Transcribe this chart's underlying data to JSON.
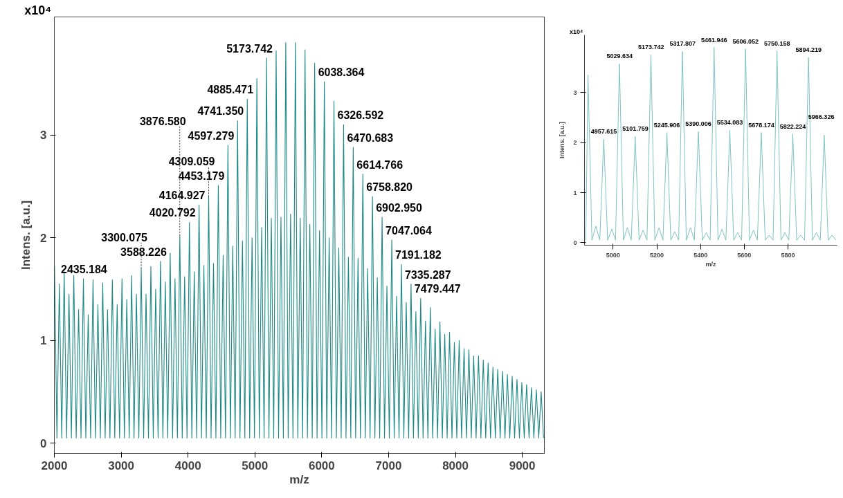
{
  "chart_data": [
    {
      "type": "line",
      "xlabel": "m/z",
      "ylabel": "Intens. [a.u.]",
      "color": "#1b8a85",
      "grid": false,
      "xlim": [
        2000,
        9330
      ],
      "ylim": [
        -0.1,
        4.15
      ],
      "xticks": [
        2000,
        3000,
        4000,
        5000,
        6000,
        7000,
        8000,
        9000
      ],
      "yticks": [
        0,
        1,
        2,
        3
      ],
      "x": [
        2003,
        2039,
        2075,
        2111,
        2147,
        2183,
        2219,
        2255,
        2291,
        2327,
        2363,
        2399,
        2435,
        2471,
        2507,
        2543,
        2579,
        2615,
        2652,
        2688,
        2724,
        2760,
        2796,
        2832,
        2868,
        2904,
        2940,
        2976,
        3012,
        3048,
        3084,
        3120,
        3156,
        3192,
        3228,
        3264,
        3300,
        3336,
        3372,
        3408,
        3444,
        3480,
        3516,
        3552,
        3588,
        3624,
        3660,
        3696,
        3733,
        3769,
        3805,
        3841,
        3877,
        3913,
        3949,
        3985,
        4021,
        4057,
        4093,
        4129,
        4165,
        4201,
        4237,
        4273,
        4309,
        4345,
        4381,
        4417,
        4453,
        4489,
        4525,
        4561,
        4597,
        4633,
        4669,
        4705,
        4741,
        4777,
        4814,
        4850,
        4886,
        4922,
        4958,
        4994,
        5030,
        5066,
        5102,
        5138,
        5174,
        5210,
        5246,
        5282,
        5318,
        5354,
        5390,
        5426,
        5462,
        5498,
        5534,
        5570,
        5606,
        5642,
        5678,
        5714,
        5750,
        5786,
        5822,
        5858,
        5894,
        5930,
        5967,
        6003,
        6039,
        6075,
        6111,
        6147,
        6183,
        6219,
        6255,
        6291,
        6327,
        6363,
        6399,
        6435,
        6471,
        6507,
        6543,
        6579,
        6615,
        6651,
        6687,
        6723,
        6759,
        6795,
        6831,
        6867,
        6903,
        6939,
        6975,
        7011,
        7048,
        7084,
        7120,
        7156,
        7192,
        7228,
        7264,
        7300,
        7336,
        7372,
        7408,
        7444,
        7480,
        7516,
        7552,
        7588,
        7624,
        7660,
        7696,
        7732,
        7768,
        7804,
        7840,
        7876,
        7912,
        7948,
        7984,
        8020,
        8056,
        8092,
        8129,
        8165,
        8201,
        8237,
        8273,
        8309,
        8345,
        8381,
        8417,
        8453,
        8489,
        8525,
        8561,
        8597,
        8633,
        8669,
        8705,
        8741,
        8777,
        8813,
        8849,
        8885,
        8921,
        8957,
        8993,
        9029,
        9065,
        9101,
        9137,
        9173,
        9210,
        9246,
        9282,
        9318
      ],
      "values": [
        1.73,
        0.05,
        1.55,
        0.05,
        1.67,
        0.05,
        1.45,
        0.05,
        1.63,
        0.05,
        1.3,
        0.05,
        1.6,
        0.05,
        1.25,
        0.05,
        1.59,
        0.05,
        1.35,
        0.05,
        1.56,
        0.05,
        1.3,
        0.05,
        1.59,
        0.05,
        1.35,
        0.05,
        1.6,
        0.05,
        1.4,
        0.05,
        1.63,
        0.05,
        1.45,
        0.05,
        1.7,
        0.05,
        1.45,
        0.05,
        1.72,
        0.05,
        1.5,
        0.05,
        1.77,
        0.05,
        1.57,
        0.05,
        1.85,
        0.05,
        1.6,
        0.05,
        2.02,
        0.05,
        1.62,
        0.05,
        2.15,
        0.05,
        1.67,
        0.05,
        2.32,
        0.05,
        1.73,
        0.05,
        2.4,
        0.05,
        1.75,
        0.05,
        2.51,
        0.05,
        1.83,
        0.05,
        2.9,
        0.05,
        1.92,
        0.05,
        3.14,
        0.05,
        1.97,
        0.05,
        3.35,
        0.05,
        2.0,
        0.05,
        3.55,
        0.05,
        2.1,
        0.05,
        3.75,
        0.05,
        2.19,
        0.05,
        3.82,
        0.05,
        2.2,
        0.05,
        3.9,
        0.05,
        2.23,
        0.05,
        3.9,
        0.05,
        2.19,
        0.05,
        3.83,
        0.05,
        2.13,
        0.05,
        3.7,
        0.05,
        2.07,
        0.05,
        3.52,
        0.05,
        2.0,
        0.05,
        3.33,
        0.05,
        1.9,
        0.05,
        3.1,
        0.05,
        1.81,
        0.05,
        2.88,
        0.05,
        1.8,
        0.05,
        2.62,
        0.05,
        1.7,
        0.05,
        2.4,
        0.05,
        1.61,
        0.05,
        2.2,
        0.05,
        1.53,
        0.05,
        1.98,
        0.05,
        1.43,
        0.05,
        1.74,
        0.05,
        1.37,
        0.05,
        1.55,
        0.05,
        1.28,
        0.05,
        1.41,
        0.05,
        1.19,
        0.05,
        1.32,
        0.05,
        1.11,
        0.05,
        1.18,
        0.05,
        1.06,
        0.05,
        1.08,
        0.05,
        0.98,
        0.05,
        1.0,
        0.05,
        0.92,
        0.05,
        0.91,
        0.05,
        0.85,
        0.05,
        0.85,
        0.05,
        0.81,
        0.05,
        0.78,
        0.05,
        0.74,
        0.05,
        0.72,
        0.05,
        0.7,
        0.05,
        0.67,
        0.05,
        0.65,
        0.05,
        0.62,
        0.05,
        0.59,
        0.05,
        0.57,
        0.05,
        0.54,
        0.05,
        0.52,
        0.05,
        0.5,
        0.05
      ],
      "annotations": [
        "x10⁴",
        {
          "text": "2435.184",
          "x": 2435.184,
          "y": 1.6
        },
        {
          "text": "3300.075",
          "x": 3300.075,
          "y": 1.7
        },
        {
          "text": "3588.226",
          "x": 3588.226,
          "y": 1.77
        },
        {
          "text": "3876.580",
          "x": 3876.58,
          "y": 2.02
        },
        {
          "text": "4020.792",
          "x": 4020.792,
          "y": 2.15
        },
        {
          "text": "4164.927",
          "x": 4164.927,
          "y": 2.32
        },
        {
          "text": "4309.059",
          "x": 4309.059,
          "y": 2.4
        },
        {
          "text": "4453.179",
          "x": 4453.179,
          "y": 2.51
        },
        {
          "text": "4597.279",
          "x": 4597.279,
          "y": 2.9
        },
        {
          "text": "4741.350",
          "x": 4741.35,
          "y": 3.14
        },
        {
          "text": "4885.471",
          "x": 4885.471,
          "y": 3.35
        },
        {
          "text": "5173.742",
          "x": 5173.742,
          "y": 3.75
        },
        {
          "text": "6038.364",
          "x": 6038.364,
          "y": 3.52
        },
        {
          "text": "6326.592",
          "x": 6326.592,
          "y": 3.1
        },
        {
          "text": "6470.683",
          "x": 6470.683,
          "y": 2.88
        },
        {
          "text": "6614.766",
          "x": 6614.766,
          "y": 2.62
        },
        {
          "text": "6758.820",
          "x": 6758.82,
          "y": 2.4
        },
        {
          "text": "6902.950",
          "x": 6902.95,
          "y": 2.2
        },
        {
          "text": "7047.064",
          "x": 7047.064,
          "y": 1.98
        },
        {
          "text": "7191.182",
          "x": 7191.182,
          "y": 1.74
        },
        {
          "text": "7335.287",
          "x": 7335.287,
          "y": 1.55
        },
        {
          "text": "7479.447",
          "x": 7479.447,
          "y": 1.41
        }
      ]
    },
    {
      "type": "line",
      "xlabel": "m/z",
      "ylabel": "Intens. [a.u.]",
      "color": "#7cc4c0",
      "grid": false,
      "xlim": [
        4869,
        6025
      ],
      "ylim": [
        -0.05,
        4.15
      ],
      "xticks": [
        5000,
        5200,
        5400,
        5600,
        5800
      ],
      "yticks": [
        0,
        1,
        2,
        3
      ],
      "x": [
        4875,
        4885,
        4903,
        4921,
        4939,
        4957,
        4975,
        4994,
        5011,
        5029,
        5047,
        5065,
        5083,
        5101,
        5119,
        5137,
        5155,
        5173,
        5191,
        5210,
        5228,
        5246,
        5264,
        5282,
        5300,
        5317,
        5335,
        5354,
        5372,
        5390,
        5408,
        5426,
        5444,
        5462,
        5480,
        5498,
        5516,
        5534,
        5552,
        5570,
        5588,
        5606,
        5624,
        5642,
        5660,
        5678,
        5696,
        5714,
        5732,
        5750,
        5768,
        5786,
        5804,
        5822,
        5840,
        5858,
        5876,
        5894,
        5912,
        5930,
        5948,
        5966,
        5984,
        6002,
        6020
      ],
      "values": [
        0.05,
        3.35,
        0.05,
        0.33,
        0.05,
        2.07,
        0.05,
        0.27,
        0.05,
        3.57,
        0.05,
        0.3,
        0.05,
        2.12,
        0.05,
        0.25,
        0.05,
        3.75,
        0.05,
        0.3,
        0.05,
        2.2,
        0.05,
        0.22,
        0.05,
        3.82,
        0.05,
        0.3,
        0.05,
        2.22,
        0.05,
        0.2,
        0.05,
        3.9,
        0.05,
        0.27,
        0.05,
        2.25,
        0.05,
        0.2,
        0.05,
        3.87,
        0.05,
        0.25,
        0.05,
        2.2,
        0.05,
        0.15,
        0.05,
        3.83,
        0.05,
        0.2,
        0.05,
        2.17,
        0.05,
        0.15,
        0.05,
        3.7,
        0.05,
        0.2,
        0.05,
        2.15,
        0.05,
        0.15,
        0.05
      ],
      "annotations": [
        "x10⁴",
        {
          "text": "4957.615",
          "x": 4957.615,
          "y": 2.07
        },
        {
          "text": "5029.634",
          "x": 5029.634,
          "y": 3.57
        },
        {
          "text": "5101.759",
          "x": 5101.759,
          "y": 2.12
        },
        {
          "text": "5173.742",
          "x": 5173.742,
          "y": 3.75
        },
        {
          "text": "5245.906",
          "x": 5245.906,
          "y": 2.2
        },
        {
          "text": "5317.807",
          "x": 5317.807,
          "y": 3.82
        },
        {
          "text": "5390.006",
          "x": 5390.006,
          "y": 2.22
        },
        {
          "text": "5461.946",
          "x": 5461.946,
          "y": 3.9
        },
        {
          "text": "5534.083",
          "x": 5534.083,
          "y": 2.25
        },
        {
          "text": "5606.052",
          "x": 5606.052,
          "y": 3.87
        },
        {
          "text": "5678.174",
          "x": 5678.174,
          "y": 2.2
        },
        {
          "text": "5750.158",
          "x": 5750.158,
          "y": 3.83
        },
        {
          "text": "5822.224",
          "x": 5822.224,
          "y": 2.17
        },
        {
          "text": "5894.219",
          "x": 5894.219,
          "y": 3.7
        },
        {
          "text": "5966.326",
          "x": 5966.326,
          "y": 2.15
        }
      ]
    }
  ]
}
